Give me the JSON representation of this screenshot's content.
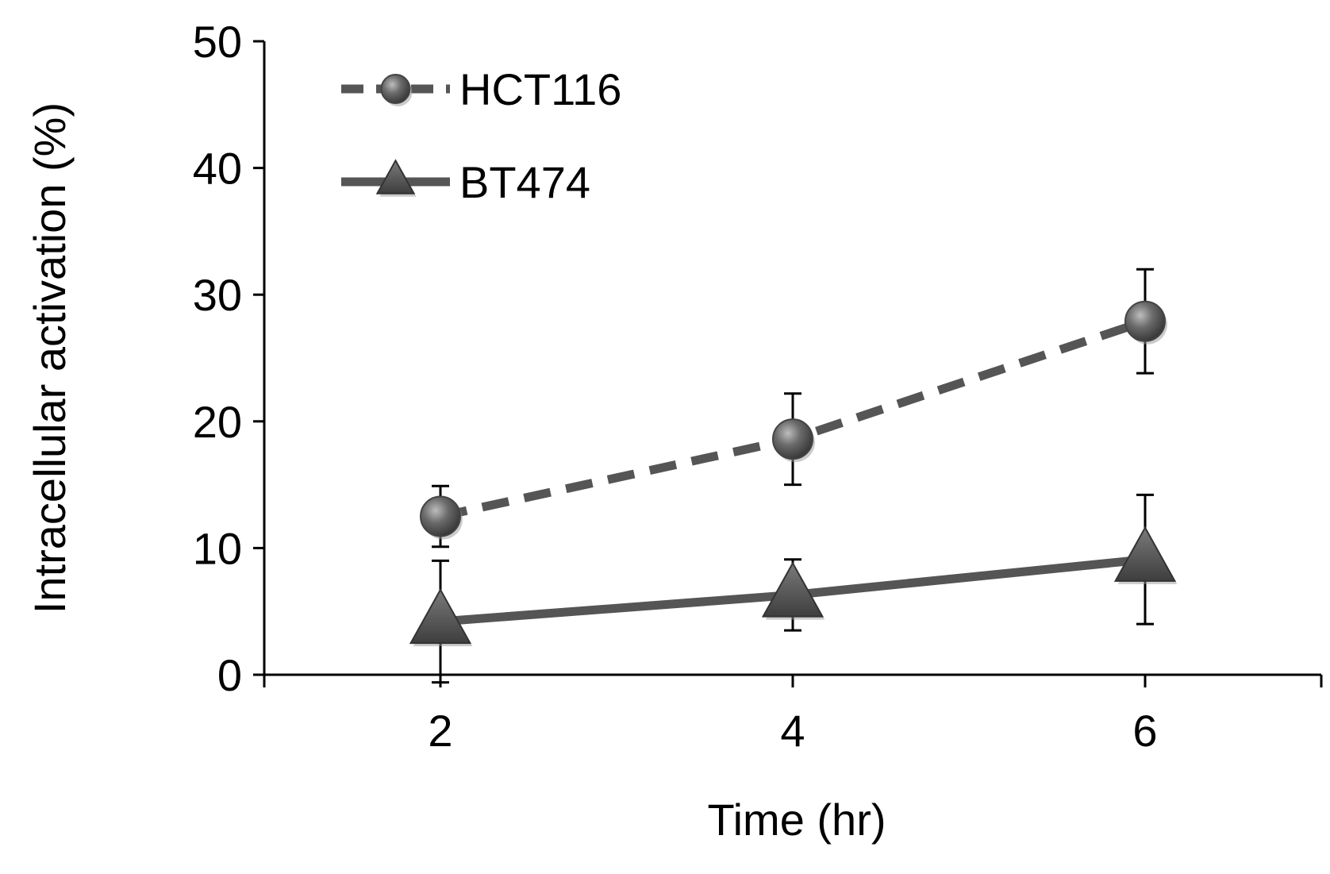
{
  "chart_data": {
    "type": "line",
    "title": "",
    "xlabel": "Time (hr)",
    "ylabel": "Intracellular activation (%)",
    "x": [
      2,
      4,
      6
    ],
    "xticks": [
      "2",
      "4",
      "6"
    ],
    "xlim": [
      1,
      7
    ],
    "ylim": [
      0,
      50
    ],
    "yticks": [
      "0",
      "10",
      "20",
      "30",
      "40",
      "50"
    ],
    "grid": false,
    "legend_position": "top-left",
    "series": [
      {
        "name": "HCT116",
        "values": [
          12.5,
          18.6,
          27.9
        ],
        "error": [
          2.4,
          3.6,
          4.1
        ],
        "line_style": "dashed",
        "marker": "circle",
        "color": "#555555"
      },
      {
        "name": "BT474",
        "values": [
          4.2,
          6.3,
          9.1
        ],
        "error": [
          4.8,
          2.8,
          5.1
        ],
        "line_style": "solid",
        "marker": "triangle",
        "color": "#555555"
      }
    ]
  }
}
